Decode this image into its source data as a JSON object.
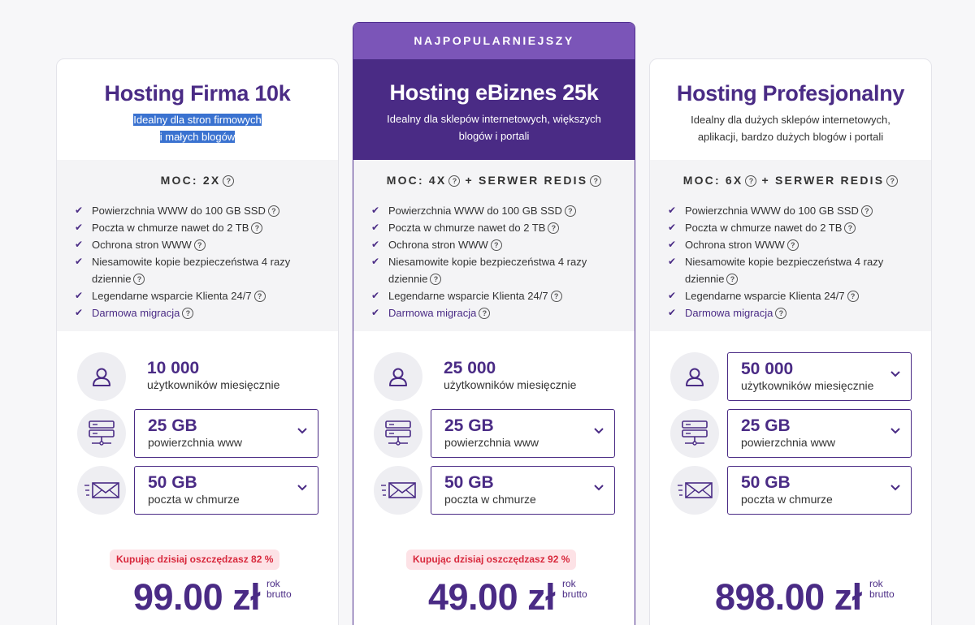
{
  "plans": [
    {
      "title": "Hosting Firma 10k",
      "subtitle_line1": "Idealny dla stron firmowych",
      "subtitle_line2": "i małych blogów",
      "moc": "MOC: 2X",
      "features": [
        "Powierzchnia WWW do 100 GB SSD",
        "Poczta w chmurze nawet do 2 TB",
        "Ochrona stron WWW",
        "Niesamowite kopie bezpieczeństwa 4 razy dziennie",
        "Legendarne wsparcie Klienta 24/7",
        "Darmowa migracja"
      ],
      "users_value": "10 000",
      "users_label": "użytkowników miesięcznie",
      "storage_value": "25 GB",
      "storage_label": "powierzchnia www",
      "mail_value": "50 GB",
      "mail_label": "poczta w chmurze",
      "savings": "Kupując dzisiaj oszczędzasz 82 %",
      "price": "99.00 zł",
      "period": "rok",
      "gross": "brutto"
    },
    {
      "badge": "NAJPOPULARNIEJSZY",
      "title": "Hosting eBiznes 25k",
      "subtitle_line1": "Idealny dla sklepów internetowych, większych",
      "subtitle_line2": "blogów i portali",
      "moc": "MOC: 4X",
      "moc_extra": "+ SERWER REDIS",
      "features": [
        "Powierzchnia WWW do 100 GB SSD",
        "Poczta w chmurze nawet do 2 TB",
        "Ochrona stron WWW",
        "Niesamowite kopie bezpieczeństwa 4 razy dziennie",
        "Legendarne wsparcie Klienta 24/7",
        "Darmowa migracja"
      ],
      "users_value": "25 000",
      "users_label": "użytkowników miesięcznie",
      "storage_value": "25 GB",
      "storage_label": "powierzchnia www",
      "mail_value": "50 GB",
      "mail_label": "poczta w chmurze",
      "savings": "Kupując dzisiaj oszczędzasz 92 %",
      "price": "49.00 zł",
      "period": "rok",
      "gross": "brutto"
    },
    {
      "title": "Hosting Profesjonalny",
      "subtitle_line1": "Idealny dla dużych sklepów internetowych,",
      "subtitle_line2": "aplikacji, bardzo dużych blogów i portali",
      "moc": "MOC: 6X",
      "moc_extra": "+ SERWER REDIS",
      "features": [
        "Powierzchnia WWW do 100 GB SSD",
        "Poczta w chmurze nawet do 2 TB",
        "Ochrona stron WWW",
        "Niesamowite kopie bezpieczeństwa 4 razy dziennie",
        "Legendarne wsparcie Klienta 24/7",
        "Darmowa migracja"
      ],
      "users_value": "50 000",
      "users_label": "użytkowników miesięcznie",
      "storage_value": "25 GB",
      "storage_label": "powierzchnia www",
      "mail_value": "50 GB",
      "mail_label": "poczta w chmurze",
      "price": "898.00 zł",
      "period": "rok",
      "gross": "brutto"
    }
  ],
  "help_glyph": "?",
  "check_glyph": "✔",
  "colors": {
    "primary": "#4a2b85",
    "badge": "#7b55b8",
    "savings_bg": "#fde2e6",
    "savings_text": "#d8283c"
  },
  "icons": {
    "users": "user-icon",
    "storage": "server-icon",
    "mail": "mail-icon",
    "dropdown": "chevron-down-icon"
  }
}
